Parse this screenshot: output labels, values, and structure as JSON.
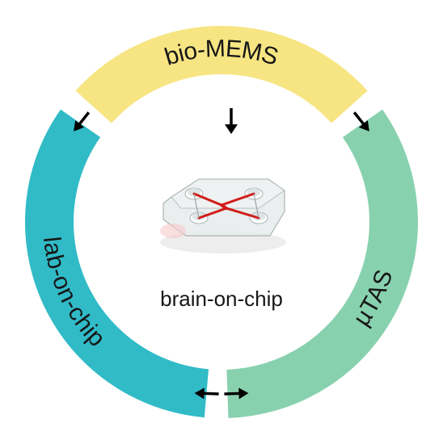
{
  "diagram": {
    "type": "circular-infographic",
    "center_label": "brain-on-chip",
    "center_fontsize": 26,
    "center_color": "#171717",
    "outer_radius": 243,
    "inner_radius": 183,
    "gap_deg": 3,
    "segments": [
      {
        "label": "bio-MEMS",
        "start_deg": 222,
        "end_deg": 318,
        "fill": "#f7e583"
      },
      {
        "label": "µTAS",
        "start_deg": 325,
        "end_deg": 88,
        "fill": "#88d1af"
      },
      {
        "label": "lab-on-chip",
        "start_deg": 95,
        "end_deg": 215,
        "fill": "#30bbc7"
      }
    ],
    "arc_label_fontsize": 30,
    "arc_label_color": "#171717",
    "arrows": {
      "color": "#000000",
      "positions": [
        {
          "angle": 218,
          "dir": "left"
        },
        {
          "angle": 322,
          "dir": "right"
        },
        {
          "angle": 91.5,
          "dir": "cw"
        },
        {
          "angle": 87,
          "dir": "ccw"
        }
      ]
    },
    "chip": {
      "body_fill": "#e6ebeb",
      "body_stroke": "#aab3b3",
      "channel_color": "#d11c1a",
      "channel_width": 3
    }
  }
}
